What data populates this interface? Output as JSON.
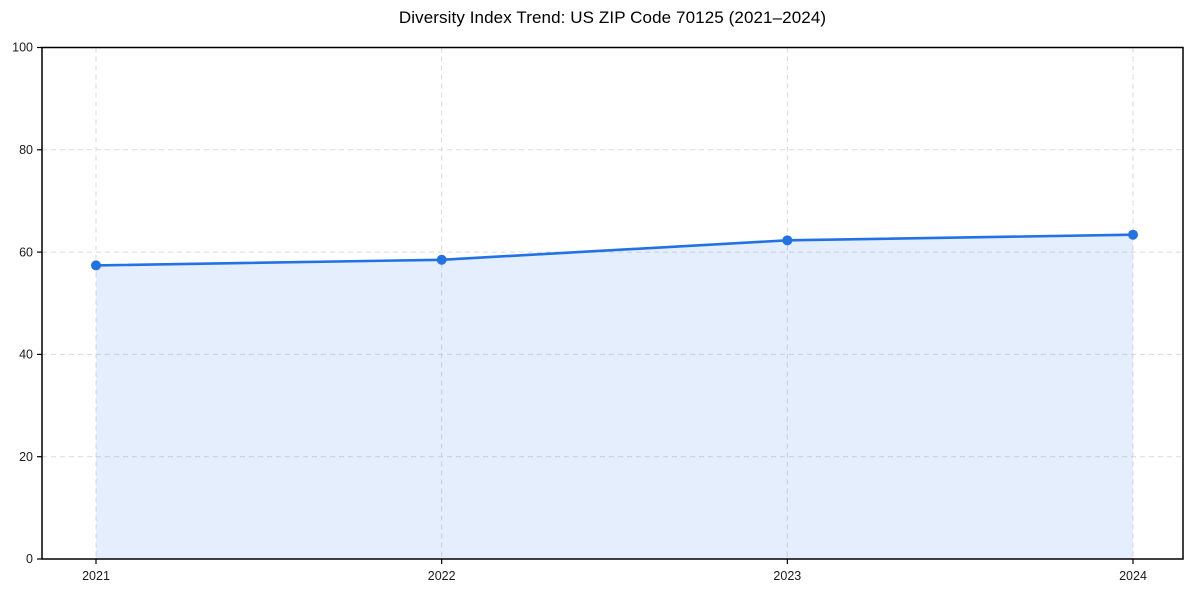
{
  "chart_data": {
    "type": "line",
    "title": "Diversity Index Trend: US ZIP Code 70125 (2021–2024)",
    "categories": [
      "2021",
      "2022",
      "2023",
      "2024"
    ],
    "values": [
      57.4,
      58.5,
      62.3,
      63.4
    ],
    "xlabel": "",
    "ylabel": "",
    "ylim": [
      0,
      100
    ],
    "yticks": [
      0,
      20,
      40,
      60,
      80,
      100
    ],
    "grid": "dashed-both-axes",
    "legend": "none",
    "area_fill_to_zero": true,
    "marker": "circle",
    "colors": {
      "line": "#2272e3",
      "marker": "#2272e3",
      "fill": "#2272e3",
      "grid": "#dadada",
      "axis": "#000000",
      "tick_label": "#1a1a1a",
      "title": "#000000",
      "background": "#ffffff"
    },
    "fill_opacity": 0.12
  }
}
